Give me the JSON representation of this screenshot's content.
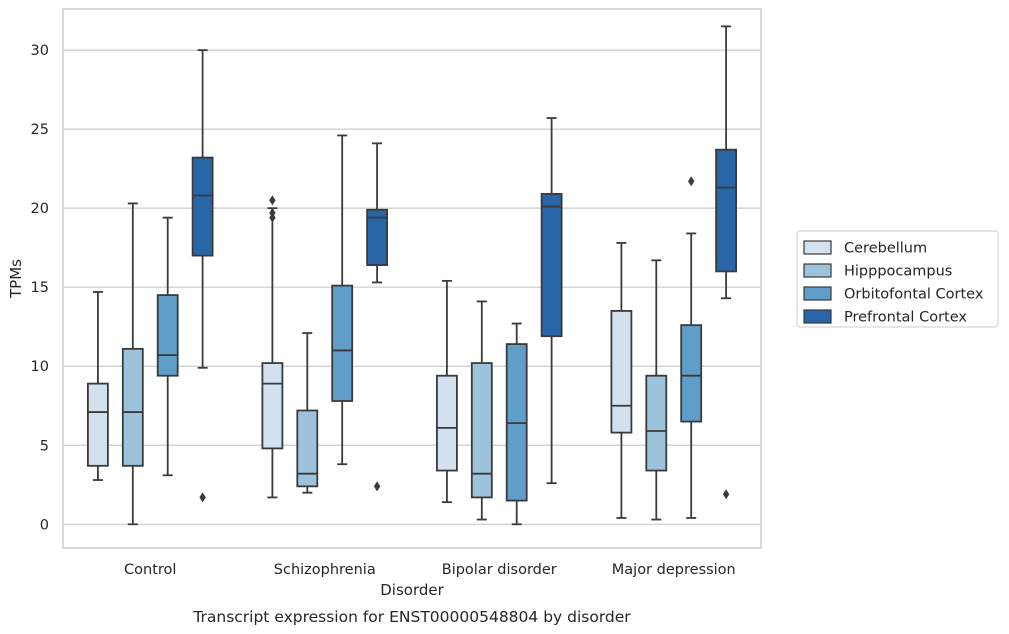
{
  "chart_data": {
    "type": "boxplot",
    "caption": "Transcript expression for ENST00000548804 by disorder",
    "xlabel": "Disorder",
    "ylabel": "TPMs",
    "ylim": [
      -1.5,
      32.6
    ],
    "yticks": [
      0,
      5,
      10,
      15,
      20,
      25,
      30
    ],
    "grid": "horizontal",
    "legend_position": "right",
    "categories": [
      "Control",
      "Schizophrenia",
      "Bipolar disorder",
      "Major depression"
    ],
    "series": [
      {
        "name": "Cerebellum",
        "color": "#d1e1f0",
        "boxes": [
          {
            "whislo": 2.8,
            "q1": 3.7,
            "med": 7.1,
            "q3": 8.9,
            "whishi": 14.7,
            "fliers": []
          },
          {
            "whislo": 1.7,
            "q1": 4.8,
            "med": 8.9,
            "q3": 10.2,
            "whishi": 20.0,
            "fliers": [
              19.4,
              19.7,
              20.5
            ]
          },
          {
            "whislo": 1.4,
            "q1": 3.4,
            "med": 6.1,
            "q3": 9.4,
            "whishi": 15.4,
            "fliers": []
          },
          {
            "whislo": 0.4,
            "q1": 5.8,
            "med": 7.5,
            "q3": 13.5,
            "whishi": 17.8,
            "fliers": []
          }
        ]
      },
      {
        "name": "Hipppocampus",
        "color": "#9cc3db",
        "boxes": [
          {
            "whislo": 0.0,
            "q1": 3.7,
            "med": 7.1,
            "q3": 11.1,
            "whishi": 20.3,
            "fliers": []
          },
          {
            "whislo": 2.0,
            "q1": 2.4,
            "med": 3.2,
            "q3": 7.2,
            "whishi": 12.1,
            "fliers": []
          },
          {
            "whislo": 0.3,
            "q1": 1.7,
            "med": 3.2,
            "q3": 10.2,
            "whishi": 14.1,
            "fliers": []
          },
          {
            "whislo": 0.3,
            "q1": 3.4,
            "med": 5.9,
            "q3": 9.4,
            "whishi": 16.7,
            "fliers": []
          }
        ]
      },
      {
        "name": "Orbitofontal Cortex",
        "color": "#5f9ec8",
        "boxes": [
          {
            "whislo": 3.1,
            "q1": 9.4,
            "med": 10.7,
            "q3": 14.5,
            "whishi": 19.4,
            "fliers": []
          },
          {
            "whislo": 3.8,
            "q1": 7.8,
            "med": 11.0,
            "q3": 15.1,
            "whishi": 24.6,
            "fliers": []
          },
          {
            "whislo": 0.0,
            "q1": 1.5,
            "med": 6.4,
            "q3": 11.4,
            "whishi": 12.7,
            "fliers": []
          },
          {
            "whislo": 0.4,
            "q1": 6.5,
            "med": 9.4,
            "q3": 12.6,
            "whishi": 18.4,
            "fliers": [
              21.7
            ]
          }
        ]
      },
      {
        "name": "Prefrontal Cortex",
        "color": "#2866a8",
        "boxes": [
          {
            "whislo": 9.9,
            "q1": 17.0,
            "med": 20.8,
            "q3": 23.2,
            "whishi": 30.0,
            "fliers": [
              1.7
            ]
          },
          {
            "whislo": 15.3,
            "q1": 16.4,
            "med": 19.4,
            "q3": 19.9,
            "whishi": 24.1,
            "fliers": [
              2.4
            ]
          },
          {
            "whislo": 2.6,
            "q1": 11.9,
            "med": 20.1,
            "q3": 20.9,
            "whishi": 25.7,
            "fliers": []
          },
          {
            "whislo": 14.3,
            "q1": 16.0,
            "med": 21.3,
            "q3": 23.7,
            "whishi": 31.5,
            "fliers": [
              1.9
            ]
          }
        ]
      }
    ]
  }
}
